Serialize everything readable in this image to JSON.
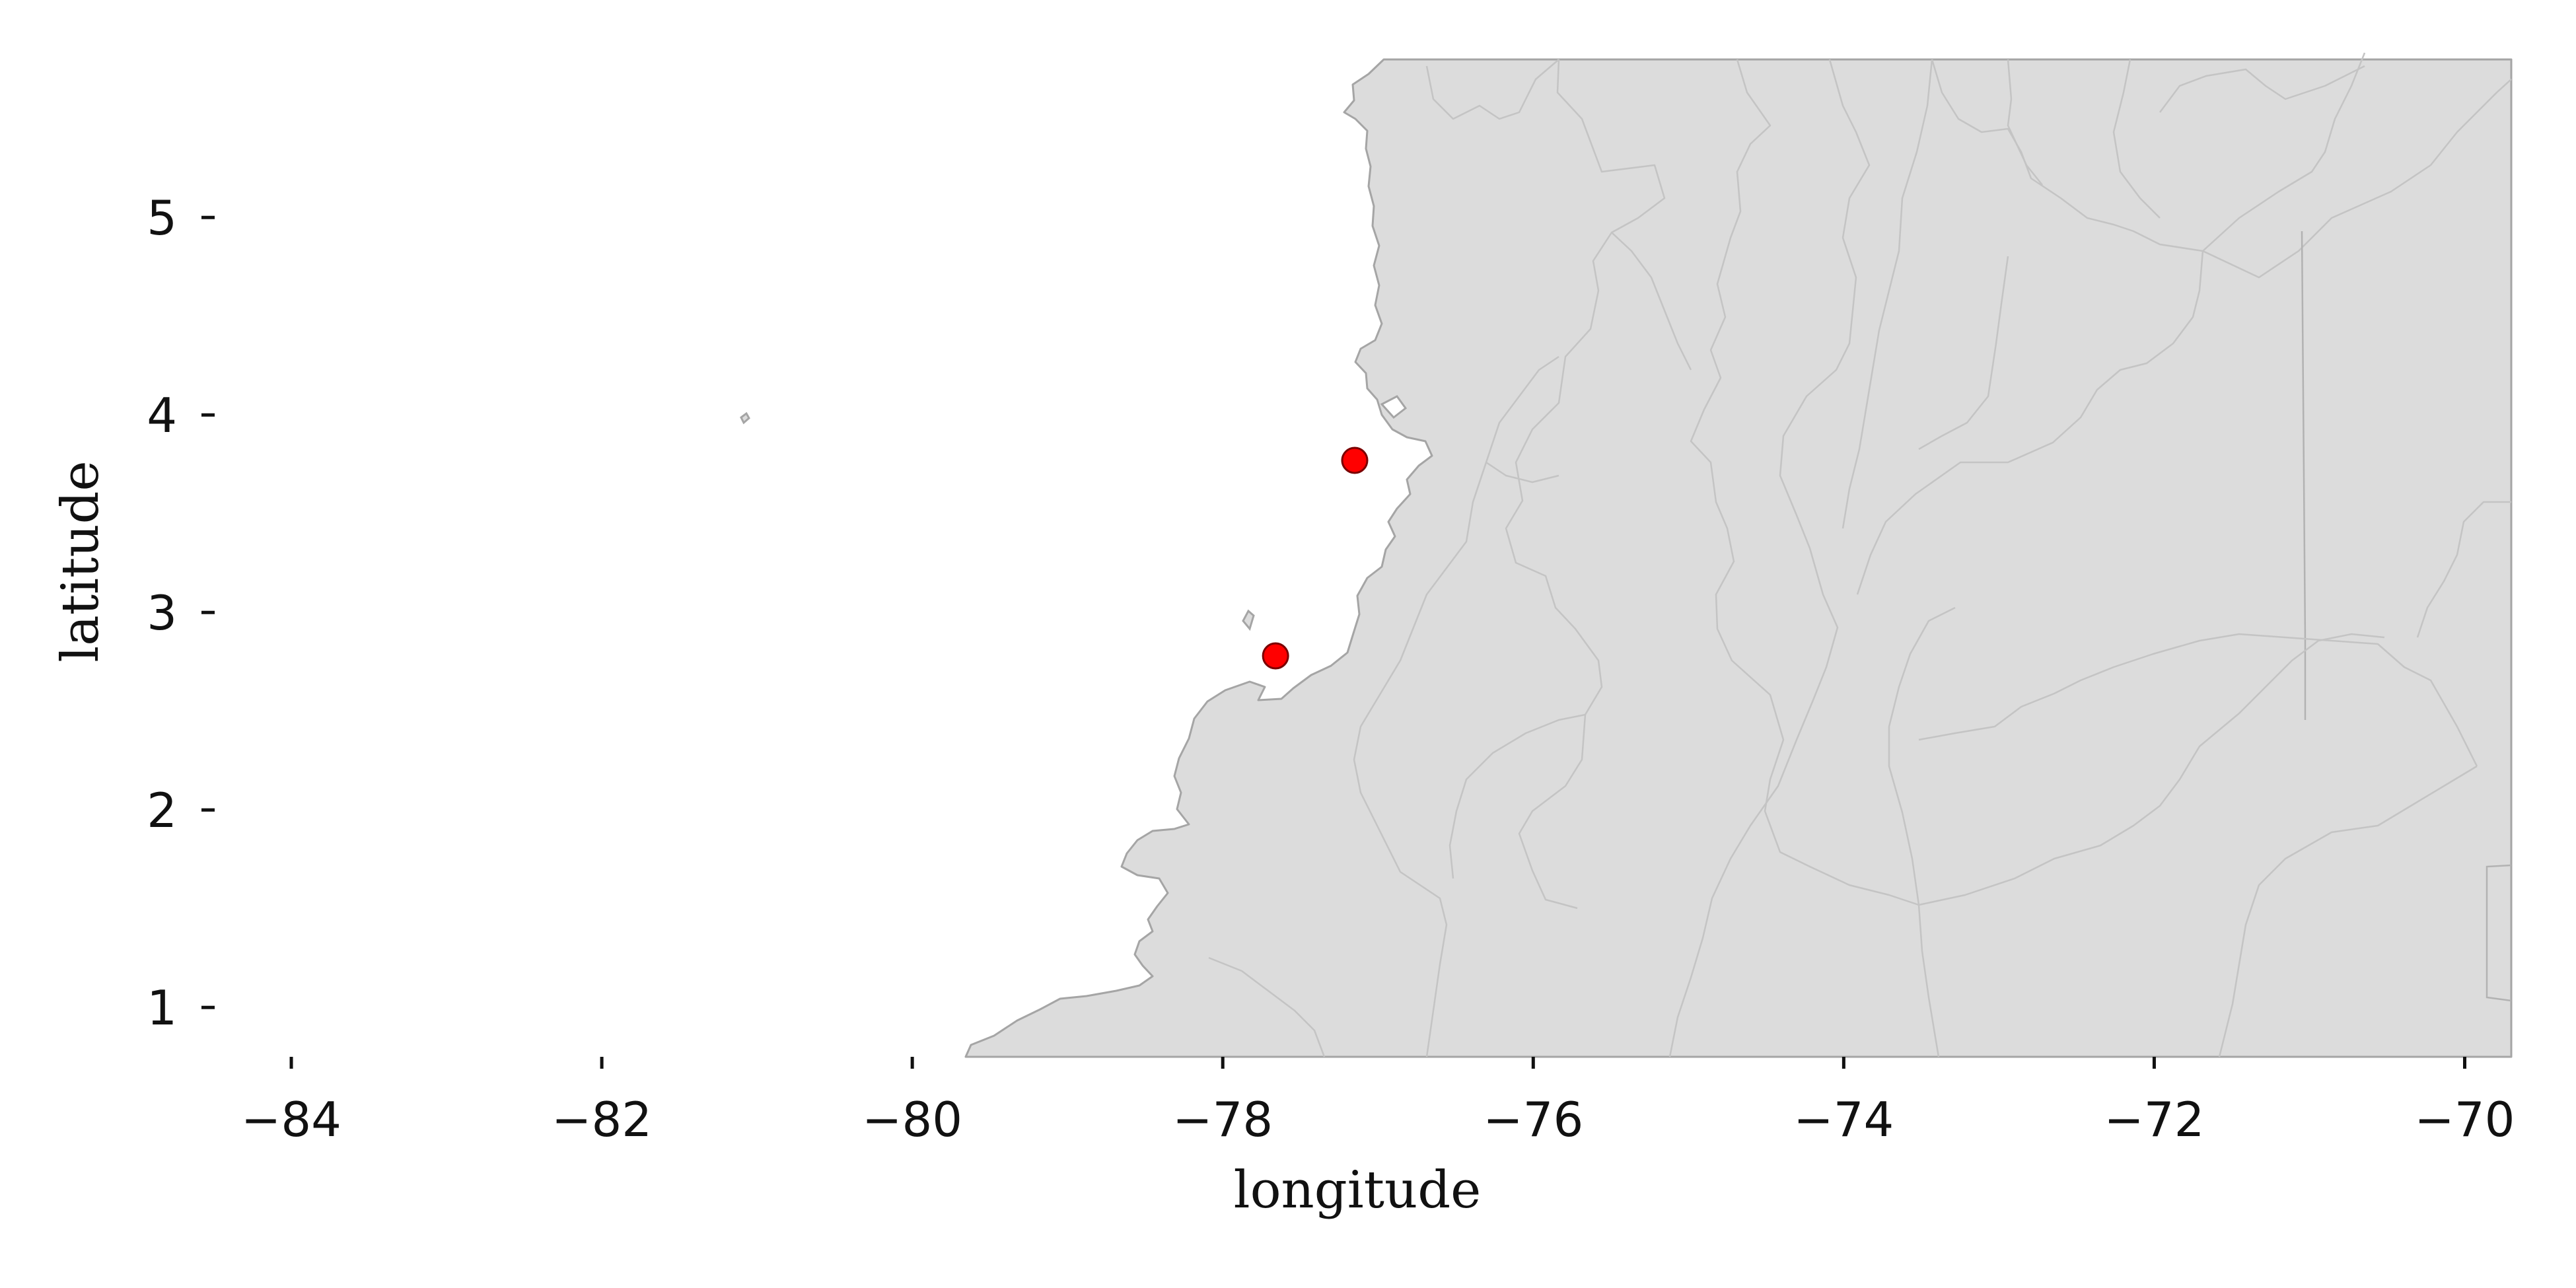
{
  "chart_data": {
    "type": "map",
    "xlabel": "longitude",
    "ylabel": "latitude",
    "xlim": [
      -85.0,
      -69.7
    ],
    "ylim": [
      0.75,
      5.8
    ],
    "x_ticks": [
      {
        "value": -84,
        "label": "−84"
      },
      {
        "value": -82,
        "label": "−82"
      },
      {
        "value": -80,
        "label": "−80"
      },
      {
        "value": -78,
        "label": "−78"
      },
      {
        "value": -76,
        "label": "−76"
      },
      {
        "value": -74,
        "label": "−74"
      },
      {
        "value": -72,
        "label": "−72"
      },
      {
        "value": -70,
        "label": "−70"
      }
    ],
    "y_ticks": [
      {
        "value": 1,
        "label": "1"
      },
      {
        "value": 2,
        "label": "2"
      },
      {
        "value": 3,
        "label": "3"
      },
      {
        "value": 4,
        "label": "4"
      },
      {
        "value": 5,
        "label": "5"
      }
    ],
    "points": [
      {
        "lon": -77.15,
        "lat": 3.77
      },
      {
        "lon": -77.66,
        "lat": 2.78
      }
    ],
    "land_color": "#dcdcdc",
    "outline_color": "#a5a5a5",
    "marker_color": "#ff0000"
  }
}
